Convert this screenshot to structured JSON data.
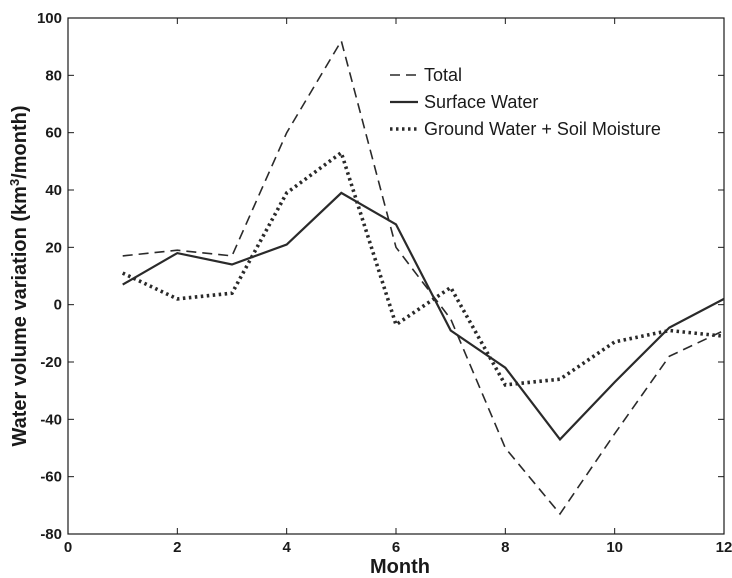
{
  "chart_data": {
    "type": "line",
    "xlabel": "Month",
    "ylabel_parts": [
      "Water volume variation (km",
      "3",
      "/month)"
    ],
    "xlim": [
      0,
      12
    ],
    "ylim": [
      -80,
      100
    ],
    "xticks": [
      0,
      2,
      4,
      6,
      8,
      10,
      12
    ],
    "yticks": [
      -80,
      -60,
      -40,
      -20,
      0,
      20,
      40,
      60,
      80,
      100
    ],
    "grid": false,
    "legend_position": "top-right",
    "series": [
      {
        "name": "Total",
        "style": "dashed",
        "color": "#2a2a2a",
        "x": [
          1,
          2,
          3,
          4,
          5,
          6,
          7,
          8,
          9,
          10,
          11,
          12
        ],
        "values": [
          17,
          19,
          17,
          60,
          92,
          20,
          -5,
          -50,
          -73,
          -45,
          -18,
          -9
        ]
      },
      {
        "name": "Surface Water",
        "style": "solid",
        "color": "#2a2a2a",
        "x": [
          1,
          2,
          3,
          4,
          5,
          6,
          7,
          8,
          9,
          10,
          11,
          12
        ],
        "values": [
          7,
          18,
          14,
          21,
          39,
          28,
          -9,
          -22,
          -47,
          -27,
          -8,
          2
        ]
      },
      {
        "name": "Ground Water + Soil Moisture",
        "style": "dotted",
        "color": "#2a2a2a",
        "x": [
          1,
          2,
          3,
          4,
          5,
          6,
          7,
          8,
          9,
          10,
          11,
          12
        ],
        "values": [
          11,
          2,
          4,
          39,
          53,
          -7,
          6,
          -28,
          -26,
          -13,
          -9,
          -11
        ]
      }
    ]
  }
}
